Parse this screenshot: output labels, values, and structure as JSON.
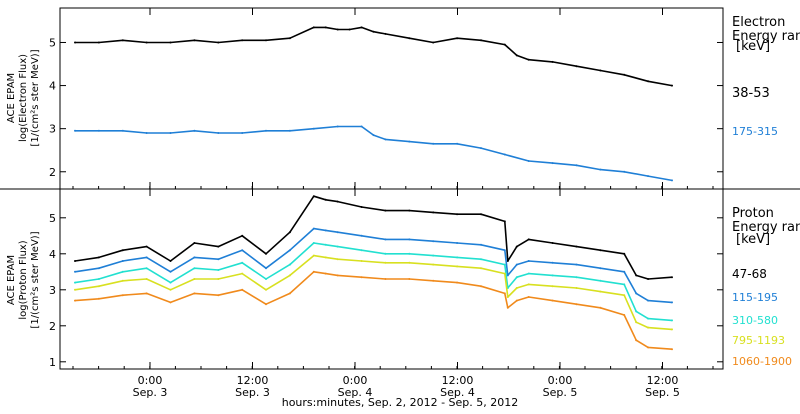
{
  "chart_data": [
    {
      "type": "line",
      "ylabel_lines": [
        "ACE EPAM",
        "log(Electron Flux)",
        "[1/(cm²s ster MeV)]"
      ],
      "ylim": [
        1.6,
        5.8
      ],
      "yticks": [
        2,
        3,
        4,
        5
      ],
      "legend_title": [
        "Electron",
        "Energy ran",
        "[keV]"
      ],
      "series": [
        {
          "name": "38-53",
          "color": "#000000",
          "x": [
            0,
            4,
            8,
            12,
            16,
            20,
            24,
            28,
            32,
            36,
            40,
            42,
            44,
            46,
            48,
            50,
            52,
            56,
            60,
            64,
            68,
            72,
            74,
            76,
            80,
            84,
            88,
            92,
            96,
            100
          ],
          "values": [
            5.0,
            5.0,
            5.05,
            5.0,
            5.0,
            5.05,
            5.0,
            5.05,
            5.05,
            5.1,
            5.35,
            5.35,
            5.3,
            5.3,
            5.35,
            5.25,
            5.2,
            5.1,
            5.0,
            5.1,
            5.05,
            4.95,
            4.7,
            4.6,
            4.55,
            4.45,
            4.35,
            4.25,
            4.1,
            4.0
          ]
        },
        {
          "name": "175-315",
          "color": "#1f7fd6",
          "x": [
            0,
            4,
            8,
            12,
            16,
            20,
            24,
            28,
            32,
            36,
            40,
            44,
            48,
            50,
            52,
            56,
            60,
            64,
            68,
            72,
            76,
            80,
            84,
            88,
            92,
            96,
            100
          ],
          "values": [
            2.95,
            2.95,
            2.95,
            2.9,
            2.9,
            2.95,
            2.9,
            2.9,
            2.95,
            2.95,
            3.0,
            3.05,
            3.05,
            2.85,
            2.75,
            2.7,
            2.65,
            2.65,
            2.55,
            2.4,
            2.25,
            2.2,
            2.15,
            2.05,
            2.0,
            1.9,
            1.8
          ]
        }
      ]
    },
    {
      "type": "line",
      "ylabel_lines": [
        "ACE EPAM",
        "log(Proton Flux)",
        "[1/(cm²s ster MeV)]"
      ],
      "ylim": [
        0.8,
        5.8
      ],
      "yticks": [
        1,
        2,
        3,
        4,
        5
      ],
      "legend_title": [
        "Proton",
        "Energy ran",
        "[keV]"
      ],
      "series": [
        {
          "name": "47-68",
          "color": "#000000",
          "x": [
            0,
            4,
            8,
            12,
            16,
            20,
            24,
            28,
            32,
            36,
            40,
            42,
            44,
            48,
            52,
            56,
            60,
            64,
            68,
            72,
            72.5,
            74,
            76,
            80,
            84,
            88,
            92,
            94,
            96,
            100
          ],
          "values": [
            3.8,
            3.9,
            4.1,
            4.2,
            3.8,
            4.3,
            4.2,
            4.5,
            4.0,
            4.6,
            5.6,
            5.5,
            5.45,
            5.3,
            5.2,
            5.2,
            5.15,
            5.1,
            5.1,
            4.9,
            3.8,
            4.2,
            4.4,
            4.3,
            4.2,
            4.1,
            4.0,
            3.4,
            3.3,
            3.35
          ]
        },
        {
          "name": "115-195",
          "color": "#1f7fd6",
          "x": [
            0,
            4,
            8,
            12,
            16,
            20,
            24,
            28,
            32,
            36,
            40,
            42,
            44,
            48,
            52,
            56,
            60,
            64,
            68,
            72,
            72.5,
            74,
            76,
            80,
            84,
            88,
            92,
            94,
            96,
            100
          ],
          "values": [
            3.5,
            3.6,
            3.8,
            3.9,
            3.5,
            3.9,
            3.85,
            4.1,
            3.6,
            4.1,
            4.7,
            4.65,
            4.6,
            4.5,
            4.4,
            4.4,
            4.35,
            4.3,
            4.25,
            4.1,
            3.4,
            3.7,
            3.8,
            3.75,
            3.7,
            3.6,
            3.5,
            2.9,
            2.7,
            2.65
          ]
        },
        {
          "name": "310-580",
          "color": "#22e0d0",
          "x": [
            0,
            4,
            8,
            12,
            16,
            20,
            24,
            28,
            32,
            36,
            40,
            42,
            44,
            48,
            52,
            56,
            60,
            64,
            68,
            72,
            72.5,
            74,
            76,
            80,
            84,
            88,
            92,
            94,
            96,
            100
          ],
          "values": [
            3.2,
            3.3,
            3.5,
            3.6,
            3.2,
            3.6,
            3.55,
            3.75,
            3.3,
            3.7,
            4.3,
            4.25,
            4.2,
            4.1,
            4.0,
            4.0,
            3.95,
            3.9,
            3.85,
            3.7,
            3.05,
            3.35,
            3.45,
            3.4,
            3.35,
            3.25,
            3.15,
            2.4,
            2.2,
            2.15
          ]
        },
        {
          "name": "795-1193",
          "color": "#d8e020",
          "x": [
            0,
            4,
            8,
            12,
            16,
            20,
            24,
            28,
            32,
            36,
            40,
            42,
            44,
            48,
            52,
            56,
            60,
            64,
            68,
            72,
            72.5,
            74,
            76,
            80,
            84,
            88,
            92,
            94,
            96,
            100
          ],
          "values": [
            3.0,
            3.1,
            3.25,
            3.3,
            3.0,
            3.3,
            3.3,
            3.45,
            3.0,
            3.4,
            3.95,
            3.9,
            3.85,
            3.8,
            3.75,
            3.75,
            3.7,
            3.65,
            3.6,
            3.45,
            2.8,
            3.05,
            3.15,
            3.1,
            3.05,
            2.95,
            2.85,
            2.1,
            1.95,
            1.9
          ]
        },
        {
          "name": "1060-1900",
          "color": "#f08a1c",
          "x": [
            0,
            4,
            8,
            12,
            16,
            20,
            24,
            28,
            32,
            36,
            40,
            42,
            44,
            48,
            52,
            56,
            60,
            64,
            68,
            72,
            72.5,
            74,
            76,
            80,
            84,
            88,
            92,
            94,
            96,
            100
          ],
          "values": [
            2.7,
            2.75,
            2.85,
            2.9,
            2.65,
            2.9,
            2.85,
            3.0,
            2.6,
            2.9,
            3.5,
            3.45,
            3.4,
            3.35,
            3.3,
            3.3,
            3.25,
            3.2,
            3.1,
            2.9,
            2.5,
            2.7,
            2.8,
            2.7,
            2.6,
            2.5,
            2.3,
            1.6,
            1.4,
            1.35
          ]
        }
      ]
    }
  ],
  "x_axis": {
    "ticks": [
      {
        "time": "0:00",
        "date": "Sep. 3"
      },
      {
        "time": "12:00",
        "date": "Sep. 3"
      },
      {
        "time": "0:00",
        "date": "Sep. 4"
      },
      {
        "time": "12:00",
        "date": "Sep. 4"
      },
      {
        "time": "0:00",
        "date": "Sep. 5"
      },
      {
        "time": "12:00",
        "date": "Sep. 5"
      }
    ],
    "title": "hours:minutes, Sep.  2, 2012 - Sep.  5, 2012"
  }
}
